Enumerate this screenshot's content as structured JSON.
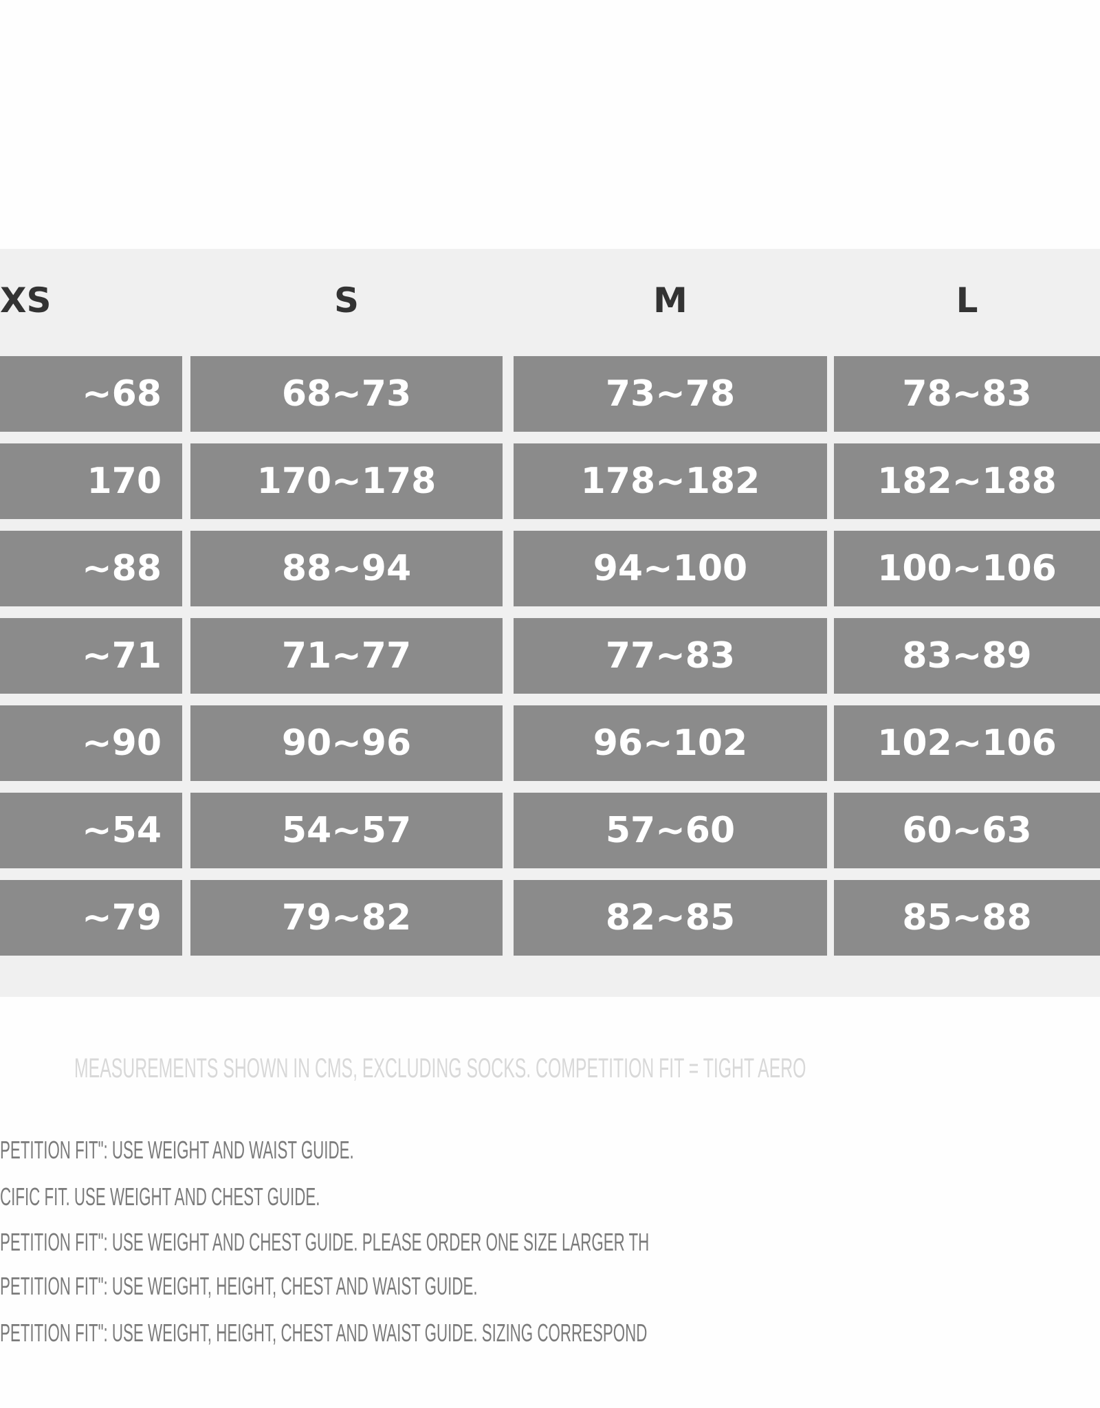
{
  "table": {
    "headers": [
      "XS",
      "S",
      "M",
      "L"
    ],
    "rows": [
      [
        "~68",
        "68~73",
        "73~78",
        "78~83"
      ],
      [
        "170",
        "170~178",
        "178~182",
        "182~188"
      ],
      [
        "~88",
        "88~94",
        "94~100",
        "100~106"
      ],
      [
        "~71",
        "71~77",
        "77~83",
        "83~89"
      ],
      [
        "~90",
        "90~96",
        "96~102",
        "102~106"
      ],
      [
        "~54",
        "54~57",
        "57~60",
        "60~63"
      ],
      [
        "~79",
        "79~82",
        "82~85",
        "85~88"
      ]
    ]
  },
  "caption": "MEASUREMENTS SHOWN IN CMS, EXCLUDING SOCKS. COMPETITION FIT = TIGHT AERO",
  "notes": [
    "PETITION FIT\": USE WEIGHT AND WAIST GUIDE.",
    "CIFIC FIT. USE WEIGHT AND CHEST GUIDE.",
    "PETITION FIT\": USE WEIGHT AND CHEST GUIDE. PLEASE ORDER ONE SIZE LARGER TH",
    "PETITION FIT\": USE WEIGHT, HEIGHT, CHEST AND WAIST GUIDE.",
    "PETITION FIT\": USE WEIGHT, HEIGHT, CHEST AND WAIST GUIDE. SIZING CORRESPOND"
  ],
  "colors": {
    "cell": "#8b8b8b",
    "band": "#f0f0f0"
  }
}
